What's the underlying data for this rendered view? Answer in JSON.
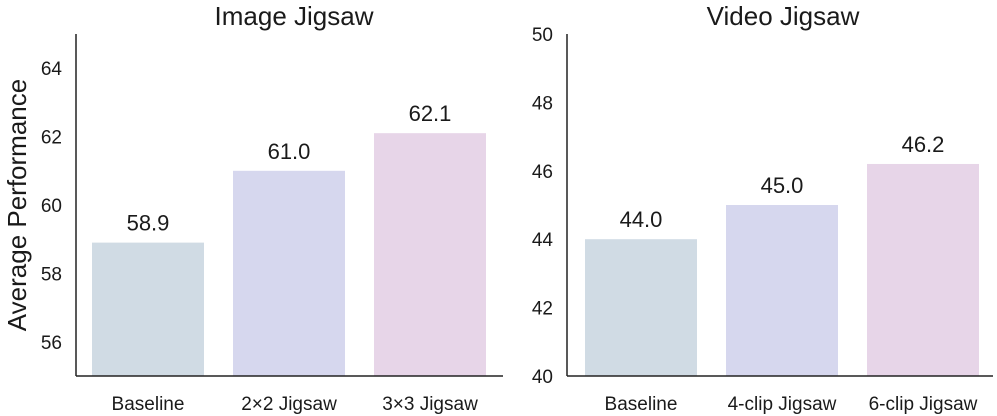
{
  "chart_data": [
    {
      "type": "bar",
      "title": "Image Jigsaw",
      "ylabel": "Average Performance",
      "categories": [
        "Baseline",
        "2×2 Jigsaw",
        "3×3 Jigsaw"
      ],
      "values": [
        58.9,
        61.0,
        62.1
      ],
      "value_labels": [
        "58.9",
        "61.0",
        "62.1"
      ],
      "colors": [
        "#d0dbe4",
        "#d6d7ee",
        "#e7d5e8"
      ],
      "ylim": [
        55,
        65
      ],
      "yticks": [
        56,
        58,
        60,
        62,
        64
      ],
      "grid": false
    },
    {
      "type": "bar",
      "title": "Video Jigsaw",
      "ylabel": "",
      "categories": [
        "Baseline",
        "4-clip Jigsaw",
        "6-clip Jigsaw"
      ],
      "values": [
        44.0,
        45.0,
        46.2
      ],
      "value_labels": [
        "44.0",
        "45.0",
        "46.2"
      ],
      "colors": [
        "#d0dbe4",
        "#d6d7ee",
        "#e7d5e8"
      ],
      "ylim": [
        40,
        50
      ],
      "yticks": [
        40,
        42,
        44,
        46,
        48,
        50
      ],
      "grid": false
    }
  ]
}
